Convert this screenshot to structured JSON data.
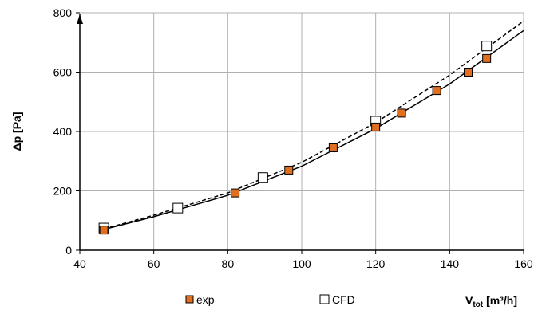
{
  "chart_data": {
    "type": "scatter",
    "xlabel_main": "V",
    "xlabel_sub": "tot",
    "xlabel_unit": "[m³/h]",
    "ylabel": "Δp [Pa]",
    "xlim": [
      40,
      160
    ],
    "ylim": [
      0,
      800
    ],
    "x_ticks": [
      40,
      60,
      80,
      100,
      120,
      140,
      160
    ],
    "y_ticks": [
      0,
      200,
      400,
      600,
      800
    ],
    "x_tick_labels": [
      "40",
      "60",
      "80",
      "100",
      "120",
      "140",
      "160"
    ],
    "y_tick_labels": [
      "0",
      "200",
      "400",
      "600",
      "800"
    ],
    "grid": true,
    "legend_position": "bottom",
    "series": [
      {
        "name": "exp",
        "marker": "filled-square",
        "color": "#E07020",
        "x": [
          46.5,
          82,
          96.5,
          108.5,
          120,
          127,
          136.5,
          145,
          150
        ],
        "y": [
          68,
          193,
          270,
          345,
          415,
          462,
          538,
          600,
          646
        ],
        "trend_line": "solid"
      },
      {
        "name": "CFD",
        "marker": "open-square",
        "color": "#ffffff",
        "x": [
          46.5,
          66.5,
          89.5,
          120,
          150
        ],
        "y": [
          75,
          142,
          245,
          435,
          688
        ],
        "trend_line": "dashed"
      }
    ],
    "trend_exp": {
      "x": [
        46.5,
        60,
        80,
        100,
        120,
        140,
        160
      ],
      "y": [
        70,
        113,
        185,
        283,
        410,
        560,
        740
      ]
    },
    "trend_cfd": {
      "x": [
        46.5,
        60,
        80,
        100,
        120,
        140,
        160
      ],
      "y": [
        72,
        118,
        193,
        296,
        430,
        590,
        772
      ]
    }
  }
}
